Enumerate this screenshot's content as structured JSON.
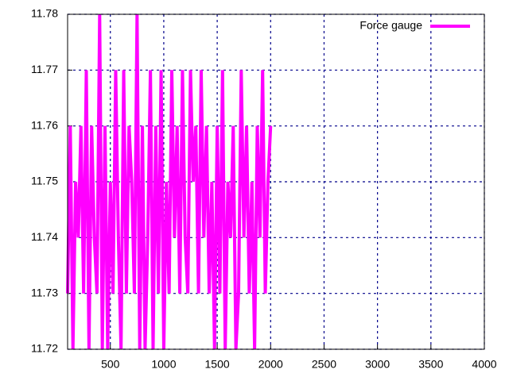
{
  "chart_data": {
    "type": "line",
    "x": [
      100,
      125,
      150,
      175,
      200,
      225,
      250,
      275,
      300,
      325,
      350,
      375,
      400,
      425,
      450,
      475,
      500,
      525,
      550,
      575,
      600,
      625,
      650,
      675,
      700,
      725,
      750,
      775,
      800,
      825,
      850,
      875,
      900,
      925,
      950,
      975,
      1000,
      1025,
      1050,
      1075,
      1100,
      1125,
      1150,
      1175,
      1200,
      1225,
      1250,
      1275,
      1300,
      1325,
      1350,
      1375,
      1400,
      1425,
      1450,
      1475,
      1500,
      1525,
      1550,
      1575,
      1600,
      1625,
      1650,
      1675,
      1700,
      1725,
      1750,
      1775,
      1800,
      1825,
      1850,
      1875,
      1900,
      1925,
      1950,
      1975,
      2000
    ],
    "series": [
      {
        "name": "Force gauge",
        "color": "#ff00ff",
        "values": [
          11.73,
          11.76,
          11.72,
          11.75,
          11.74,
          11.76,
          11.73,
          11.77,
          11.72,
          11.76,
          11.74,
          11.73,
          11.78,
          11.72,
          11.76,
          11.72,
          11.75,
          11.73,
          11.77,
          11.74,
          11.72,
          11.77,
          11.73,
          11.76,
          11.75,
          11.73,
          11.78,
          11.72,
          11.76,
          11.72,
          11.74,
          11.77,
          11.72,
          11.76,
          11.73,
          11.77,
          11.72,
          11.75,
          11.73,
          11.77,
          11.74,
          11.76,
          11.73,
          11.77,
          11.74,
          11.73,
          11.77,
          11.75,
          11.76,
          11.73,
          11.77,
          11.74,
          11.76,
          11.73,
          11.75,
          11.72,
          11.76,
          11.73,
          11.77,
          11.72,
          11.75,
          11.74,
          11.76,
          11.72,
          11.73,
          11.77,
          11.74,
          11.76,
          11.73,
          11.75,
          11.72,
          11.76,
          11.74,
          11.77,
          11.73,
          11.75,
          11.76
        ]
      }
    ],
    "xlim": [
      100,
      4000
    ],
    "ylim": [
      11.72,
      11.78
    ],
    "xticks": [
      500,
      1000,
      1500,
      2000,
      2500,
      3000,
      3500,
      4000
    ],
    "yticks": [
      11.72,
      11.73,
      11.74,
      11.75,
      11.76,
      11.77,
      11.78
    ],
    "grid": true,
    "legend": "top-right"
  }
}
